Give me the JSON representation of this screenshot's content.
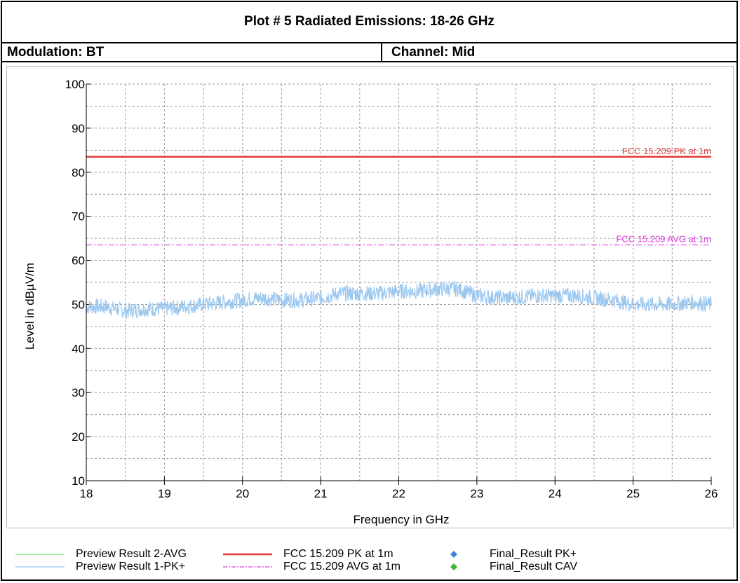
{
  "header": {
    "title": "Plot # 5 Radiated Emissions: 18-26 GHz",
    "modulation": "Modulation: BT",
    "channel": "Channel: Mid"
  },
  "chart_data": {
    "type": "line",
    "xlabel": "Frequency in GHz",
    "ylabel": "Level in dBµV/m",
    "xlim": [
      18,
      26
    ],
    "ylim": [
      10,
      100
    ],
    "x_ticks": [
      "18",
      "19",
      "20",
      "21",
      "22",
      "23",
      "24",
      "25",
      "26"
    ],
    "y_ticks": [
      "10",
      "20",
      "30",
      "40",
      "50",
      "60",
      "70",
      "80",
      "90",
      "100"
    ],
    "grid": true,
    "legend_position": "bottom",
    "series": [
      {
        "name": "Preview Result 1-PK+",
        "color": "#9cc8f0",
        "x": [
          18.0,
          18.25,
          18.5,
          18.75,
          19.0,
          19.25,
          19.5,
          19.75,
          20.0,
          20.25,
          20.5,
          20.75,
          21.0,
          21.25,
          21.5,
          21.75,
          22.0,
          22.25,
          22.5,
          22.75,
          23.0,
          23.25,
          23.5,
          23.75,
          24.0,
          24.25,
          24.5,
          24.75,
          25.0,
          25.25,
          25.5,
          25.75,
          26.0
        ],
        "y": [
          49.5,
          49.5,
          48.5,
          49.0,
          49.0,
          49.5,
          50.0,
          50.5,
          51.0,
          51.5,
          51.0,
          51.0,
          51.5,
          52.5,
          52.5,
          52.5,
          53.0,
          53.0,
          53.5,
          53.5,
          52.0,
          51.5,
          51.5,
          52.0,
          52.0,
          52.0,
          51.5,
          51.0,
          50.0,
          50.0,
          50.0,
          50.5,
          50.0
        ],
        "spread": 1.8
      },
      {
        "name": "FCC 15.209 PK at 1m",
        "color": "#e33a3a",
        "x": [
          18,
          26
        ],
        "y": [
          83.5,
          83.5
        ],
        "label": "FCC 15.209 PK at 1m"
      },
      {
        "name": "FCC 15.209 AVG at 1m",
        "color": "#e040e0",
        "x": [
          18,
          26
        ],
        "y": [
          63.5,
          63.5
        ],
        "label": "FCC 15.209 AVG at 1m"
      }
    ]
  },
  "legend": {
    "items": [
      {
        "label": "Preview Result 2-AVG",
        "color": "#7be07b",
        "kind": "line"
      },
      {
        "label": "Preview Result 1-PK+",
        "color": "#9cc8f0",
        "kind": "line"
      },
      {
        "label": "FCC 15.209 PK at 1m",
        "color": "#e33a3a",
        "kind": "thick-line"
      },
      {
        "label": "FCC 15.209 AVG at 1m",
        "color": "#e040e0",
        "kind": "dashdot"
      },
      {
        "label": "Final_Result PK+",
        "color": "#3a86d0",
        "kind": "diamond"
      },
      {
        "label": "Final_Result CAV",
        "color": "#3cb43c",
        "kind": "diamond"
      }
    ]
  }
}
